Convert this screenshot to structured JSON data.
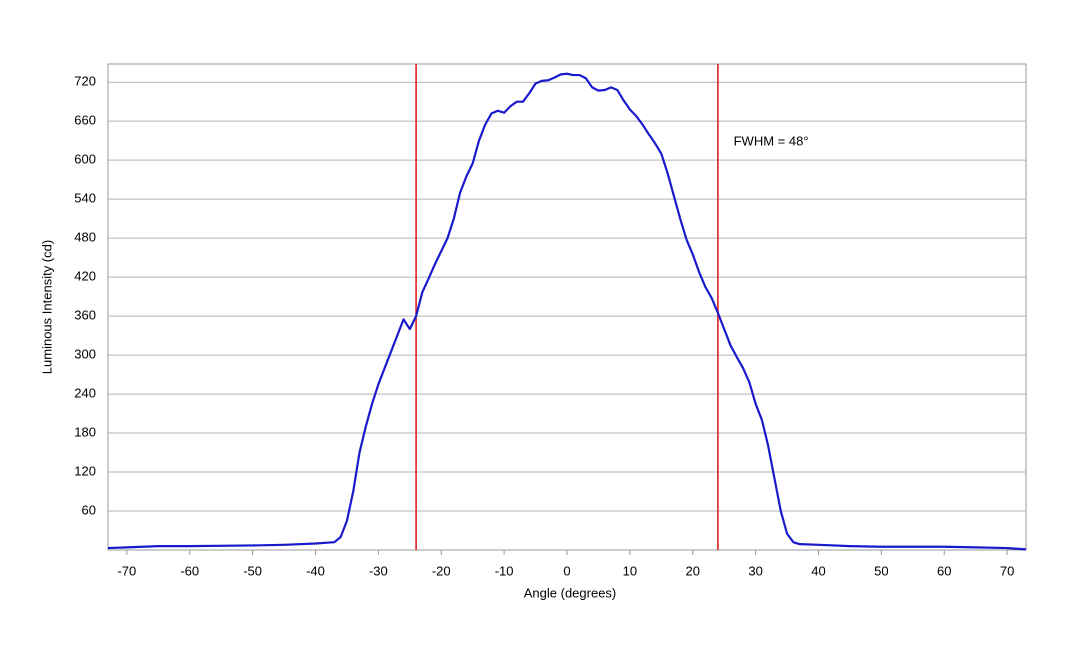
{
  "chart_data": {
    "type": "line",
    "x_label": "Angle (degrees)",
    "y_label": "Luminous Intensity (cd)",
    "x": [
      -73,
      -70,
      -65,
      -60,
      -50,
      -45,
      -40,
      -37,
      -36,
      -35,
      -34,
      -33,
      -32,
      -31,
      -30,
      -29,
      -28,
      -27,
      -26,
      -25,
      -24,
      -23,
      -22,
      -21,
      -20,
      -19,
      -18,
      -17,
      -16,
      -15,
      -14,
      -13,
      -12,
      -11,
      -10,
      -9,
      -8,
      -7,
      -6,
      -5,
      -4,
      -3,
      -2,
      -1,
      0,
      1,
      2,
      3,
      4,
      5,
      6,
      7,
      8,
      9,
      10,
      11,
      12,
      13,
      14,
      15,
      16,
      17,
      18,
      19,
      20,
      21,
      22,
      23,
      24,
      25,
      26,
      27,
      28,
      29,
      30,
      31,
      32,
      33,
      34,
      35,
      36,
      37,
      40,
      45,
      50,
      60,
      65,
      70,
      73
    ],
    "series": [
      {
        "color": "#1a1acd",
        "values": [
          3,
          4,
          6,
          6,
          7,
          8,
          10,
          12,
          20,
          45,
          90,
          150,
          190,
          225,
          255,
          280,
          305,
          330,
          355,
          340,
          360,
          397,
          418,
          440,
          460,
          480,
          510,
          550,
          575,
          595,
          630,
          655,
          672,
          676,
          673,
          683,
          690,
          690,
          703,
          718,
          722,
          723,
          727,
          732,
          733,
          731,
          731,
          726,
          712,
          707,
          708,
          712,
          708,
          692,
          678,
          668,
          655,
          640,
          626,
          610,
          580,
          545,
          510,
          478,
          455,
          428,
          405,
          388,
          365,
          340,
          315,
          297,
          280,
          258,
          225,
          200,
          160,
          110,
          60,
          25,
          12,
          9,
          8,
          6,
          5,
          5,
          4,
          3,
          1
        ]
      }
    ],
    "xlim": [
      -73,
      73
    ],
    "ylim": [
      0,
      748
    ],
    "xticks": [
      -70,
      -60,
      -50,
      -40,
      -30,
      -20,
      -10,
      0,
      10,
      20,
      30,
      40,
      50,
      60,
      70
    ],
    "yticks": [
      60,
      120,
      180,
      240,
      300,
      360,
      420,
      480,
      540,
      600,
      660,
      720
    ],
    "grid": true,
    "vlines": {
      "color": "#e02020",
      "x": [
        -24,
        24
      ]
    },
    "annotation": {
      "text": "FWHM = 48°",
      "x": 26.5,
      "y": 628
    }
  }
}
